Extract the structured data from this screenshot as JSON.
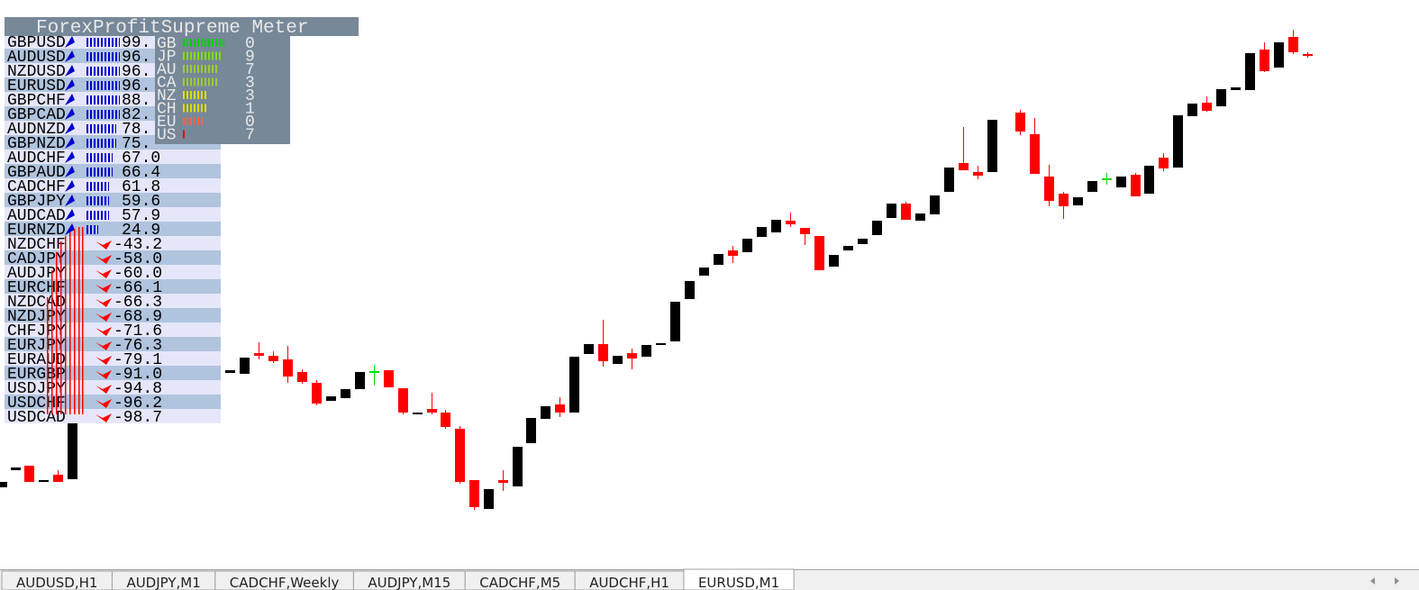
{
  "header": {
    "title": "ForexProfitSupreme Meter"
  },
  "pairs": [
    {
      "name": "GBPUSD",
      "value": "99."
    },
    {
      "name": "AUDUSD",
      "value": "96."
    },
    {
      "name": "NZDUSD",
      "value": "96."
    },
    {
      "name": "EURUSD",
      "value": "96."
    },
    {
      "name": "GBPCHF",
      "value": "88."
    },
    {
      "name": "GBPCAD",
      "value": "82."
    },
    {
      "name": "AUDNZD",
      "value": "78."
    },
    {
      "name": "GBPNZD",
      "value": "75."
    },
    {
      "name": "AUDCHF",
      "value": "67.0"
    },
    {
      "name": "GBPAUD",
      "value": "66.4"
    },
    {
      "name": "CADCHF",
      "value": "61.8"
    },
    {
      "name": "GBPJPY",
      "value": "59.6"
    },
    {
      "name": "AUDCAD",
      "value": "57.9"
    },
    {
      "name": "EURNZD",
      "value": "24.9"
    },
    {
      "name": "NZDCHF",
      "value": "-43.2"
    },
    {
      "name": "CADJPY",
      "value": "-58.0"
    },
    {
      "name": "AUDJPY",
      "value": "-60.0"
    },
    {
      "name": "EURCHF",
      "value": "-66.1"
    },
    {
      "name": "NZDCAD",
      "value": "-66.3"
    },
    {
      "name": "NZDJPY",
      "value": "-68.9"
    },
    {
      "name": "CHFJPY",
      "value": "-71.6"
    },
    {
      "name": "EURJPY",
      "value": "-76.3"
    },
    {
      "name": "EURAUD",
      "value": "-79.1"
    },
    {
      "name": "EURGBP",
      "value": "-91.0"
    },
    {
      "name": "USDJPY",
      "value": "-94.8"
    },
    {
      "name": "USDCHF",
      "value": "-96.2"
    },
    {
      "name": "USDCAD",
      "value": "-98.7"
    }
  ],
  "strength": [
    {
      "currency": "GB",
      "value": "0"
    },
    {
      "currency": "JP",
      "value": "9"
    },
    {
      "currency": "AU",
      "value": "7"
    },
    {
      "currency": "CA",
      "value": "3"
    },
    {
      "currency": "NZ",
      "value": "3"
    },
    {
      "currency": "CH",
      "value": "1"
    },
    {
      "currency": "EU",
      "value": "0"
    },
    {
      "currency": "US",
      "value": "7"
    }
  ],
  "tabs": [
    "AUDUSD,H1",
    "AUDJPY,M1",
    "CADCHF,Weekly",
    "AUDJPY,M15",
    "CADCHF,M5",
    "AUDCHF,H1",
    "EURUSD,M1"
  ]
}
